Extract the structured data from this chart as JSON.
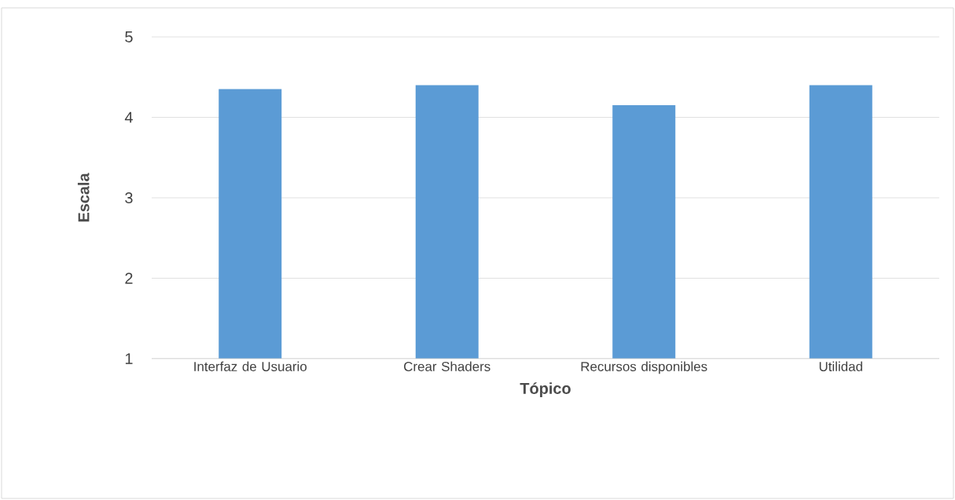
{
  "chart_data": {
    "type": "bar",
    "xlabel": "Tópico",
    "ylabel": "Escala",
    "categories": [
      "Interfaz de Usuario",
      "Crear Shaders",
      "Recursos disponibles",
      "Utilidad"
    ],
    "values": [
      4.35,
      4.4,
      4.15,
      4.4
    ],
    "color": "#5b9bd5",
    "ylim": [
      1,
      5
    ],
    "yticks": [
      1,
      2,
      3,
      4,
      5
    ],
    "grid": "y"
  }
}
